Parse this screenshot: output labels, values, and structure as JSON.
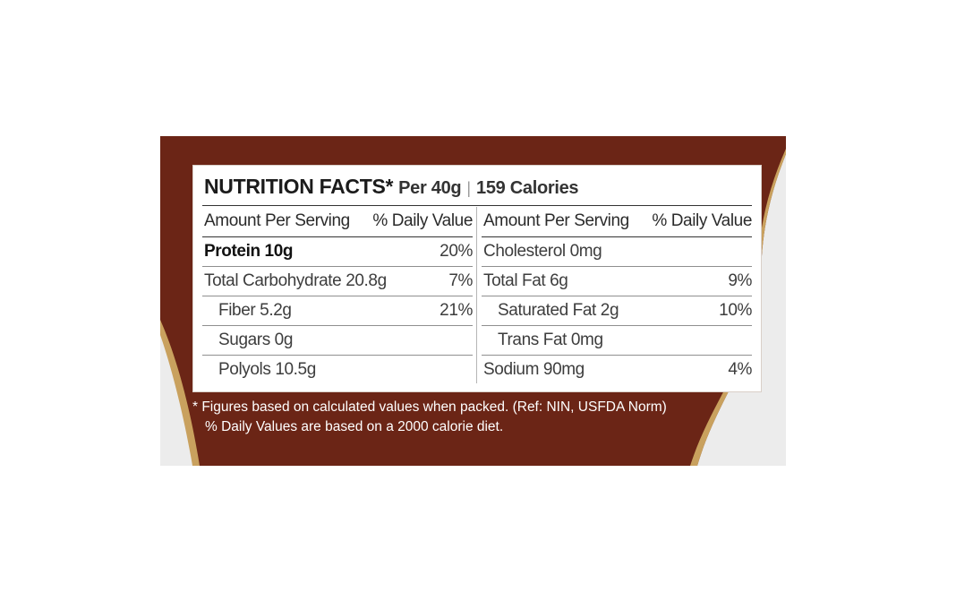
{
  "panel": {
    "title": "NUTRITION FACTS*",
    "serving": "Per 40g",
    "separator": "|",
    "calories": "159 Calories"
  },
  "left_column": {
    "header_label": "Amount Per Serving",
    "header_value": "% Daily Value",
    "rows": [
      {
        "label": "Protein 10g",
        "value": "20%"
      },
      {
        "label": "Total Carbohydrate 20.8g",
        "value": "7%"
      },
      {
        "label": "Fiber 5.2g",
        "value": "21%"
      },
      {
        "label": "Sugars 0g",
        "value": ""
      },
      {
        "label": "Polyols 10.5g",
        "value": ""
      }
    ]
  },
  "right_column": {
    "header_label": "Amount Per Serving",
    "header_value": "% Daily Value",
    "rows": [
      {
        "label": "Cholesterol 0mg",
        "value": ""
      },
      {
        "label": "Total Fat 6g",
        "value": "9%"
      },
      {
        "label": "Saturated Fat 2g",
        "value": "10%"
      },
      {
        "label": "Trans Fat 0mg",
        "value": ""
      },
      {
        "label": "Sodium 90mg",
        "value": "4%"
      }
    ]
  },
  "footnotes": {
    "line1": "* Figures based on calculated values when packed. (Ref: NIN, USFDA Norm)",
    "line2": "% Daily Values are based on a 2000 calorie diet."
  },
  "colors": {
    "packaging_brown": "#6b2516",
    "packaging_gold": "#c9a15e",
    "packaging_grey": "#ececec",
    "text": "#3d3d3d"
  }
}
